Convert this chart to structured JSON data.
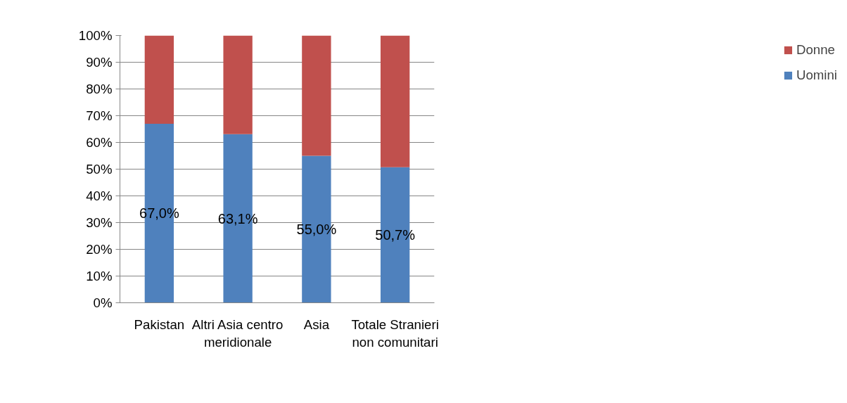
{
  "chart_data": {
    "type": "bar",
    "stacked": true,
    "categories": [
      "Pakistan",
      "Altri Asia centro meridionale",
      "Asia",
      "Totale Stranieri non comunitari"
    ],
    "series": [
      {
        "name": "Uomini",
        "color": "#4f81bd",
        "values": [
          67.0,
          63.1,
          55.0,
          50.7
        ],
        "value_labels": [
          "67,0%",
          "63,1%",
          "55,0%",
          "50,7%"
        ]
      },
      {
        "name": "Donne",
        "color": "#c0504d",
        "values": [
          33.0,
          36.9,
          45.0,
          49.3
        ]
      }
    ],
    "ylim": [
      0,
      100
    ],
    "yticks": [
      {
        "value": 0,
        "label": "0%"
      },
      {
        "value": 10,
        "label": "10%"
      },
      {
        "value": 20,
        "label": "20%"
      },
      {
        "value": 30,
        "label": "30%"
      },
      {
        "value": 40,
        "label": "40%"
      },
      {
        "value": 50,
        "label": "50%"
      },
      {
        "value": 60,
        "label": "60%"
      },
      {
        "value": 70,
        "label": "70%"
      },
      {
        "value": 80,
        "label": "80%"
      },
      {
        "value": 90,
        "label": "90%"
      },
      {
        "value": 100,
        "label": "100%"
      }
    ],
    "grid": "y",
    "legend": "right"
  }
}
